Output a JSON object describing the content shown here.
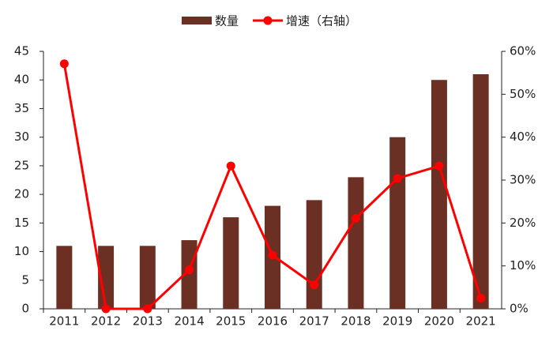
{
  "chart_data": {
    "type": "combo",
    "categories": [
      "2011",
      "2012",
      "2013",
      "2014",
      "2015",
      "2016",
      "2017",
      "2018",
      "2019",
      "2020",
      "2021"
    ],
    "series": [
      {
        "name": "数量",
        "type": "bar",
        "color": "#6b2f24",
        "values": [
          11,
          11,
          11,
          12,
          16,
          18,
          19,
          23,
          30,
          40,
          41
        ]
      },
      {
        "name": "增速（右轴）",
        "type": "line",
        "axis": "y2",
        "color": "#ff0000",
        "values": [
          57.1,
          0,
          0,
          9.1,
          33.3,
          12.5,
          5.6,
          21.1,
          30.4,
          33.3,
          2.5
        ]
      }
    ],
    "ylim": [
      0,
      45
    ],
    "yticks": [
      0,
      5,
      10,
      15,
      20,
      25,
      30,
      35,
      40,
      45
    ],
    "y2lim": [
      0,
      60
    ],
    "y2ticks": [
      {
        "value": 0,
        "label": "0%"
      },
      {
        "value": 10,
        "label": "10%"
      },
      {
        "value": 20,
        "label": "20%"
      },
      {
        "value": 30,
        "label": "30%"
      },
      {
        "value": 40,
        "label": "40%"
      },
      {
        "value": 50,
        "label": "50%"
      },
      {
        "value": 60,
        "label": "60%"
      }
    ],
    "legend": "top"
  }
}
